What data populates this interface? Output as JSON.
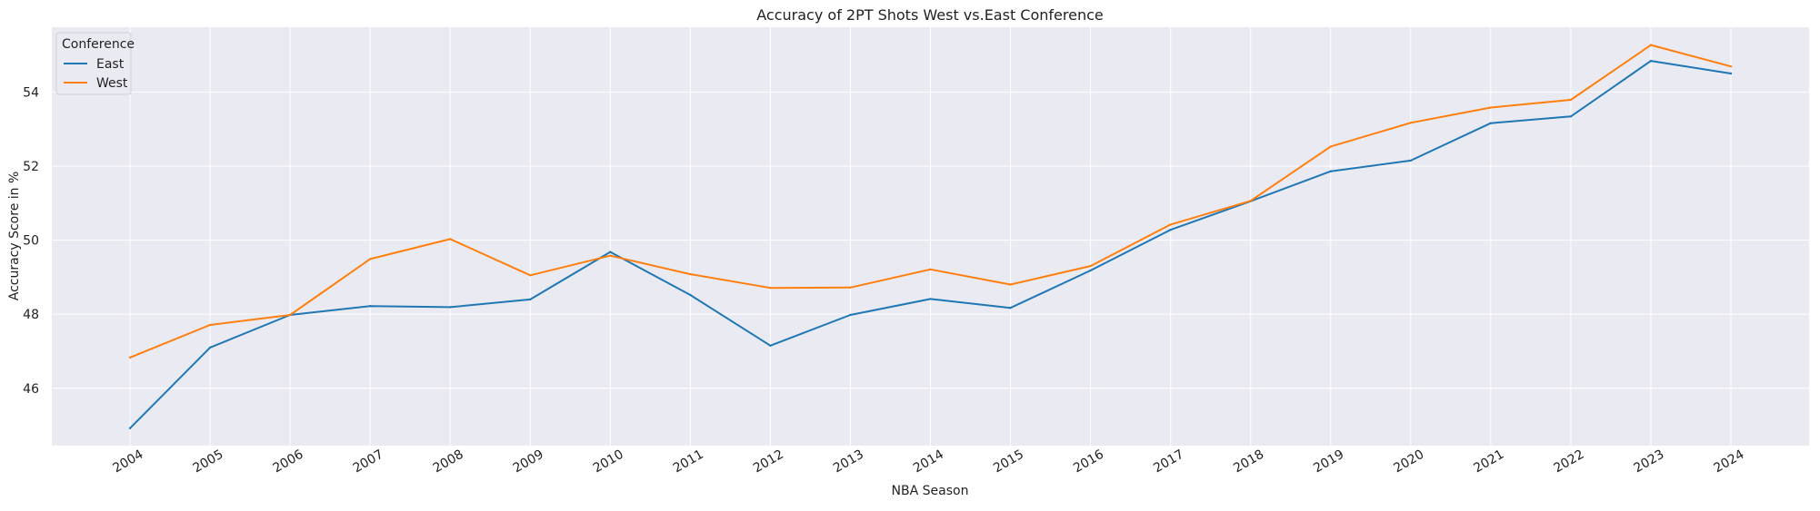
{
  "chart_data": {
    "type": "line",
    "title": "Accuracy of 2PT Shots West vs.East Conference",
    "xlabel": "NBA Season",
    "ylabel": "Accuracy Score in %",
    "x": [
      "2004",
      "2005",
      "2006",
      "2007",
      "2008",
      "2009",
      "2010",
      "2011",
      "2012",
      "2013",
      "2014",
      "2015",
      "2016",
      "2017",
      "2018",
      "2019",
      "2020",
      "2021",
      "2022",
      "2023",
      "2024"
    ],
    "ylim": [
      44.45,
      55.75
    ],
    "yticks": [
      46,
      48,
      50,
      52,
      54
    ],
    "grid": true,
    "legend": {
      "title": "Conference",
      "position": "top-left"
    },
    "series": [
      {
        "name": "East",
        "color": "#1f77b4",
        "values": [
          44.92,
          47.1,
          47.98,
          48.22,
          48.19,
          48.4,
          49.68,
          48.52,
          47.15,
          47.98,
          48.41,
          48.17,
          49.18,
          50.28,
          51.05,
          51.86,
          52.15,
          53.16,
          53.34,
          54.84,
          54.5
        ]
      },
      {
        "name": "West",
        "color": "#ff7f0e",
        "values": [
          46.83,
          47.71,
          47.98,
          49.49,
          50.03,
          49.05,
          49.58,
          49.08,
          48.71,
          48.72,
          49.21,
          48.8,
          49.3,
          50.42,
          51.06,
          52.53,
          53.17,
          53.58,
          53.79,
          55.27,
          54.69
        ]
      }
    ]
  }
}
